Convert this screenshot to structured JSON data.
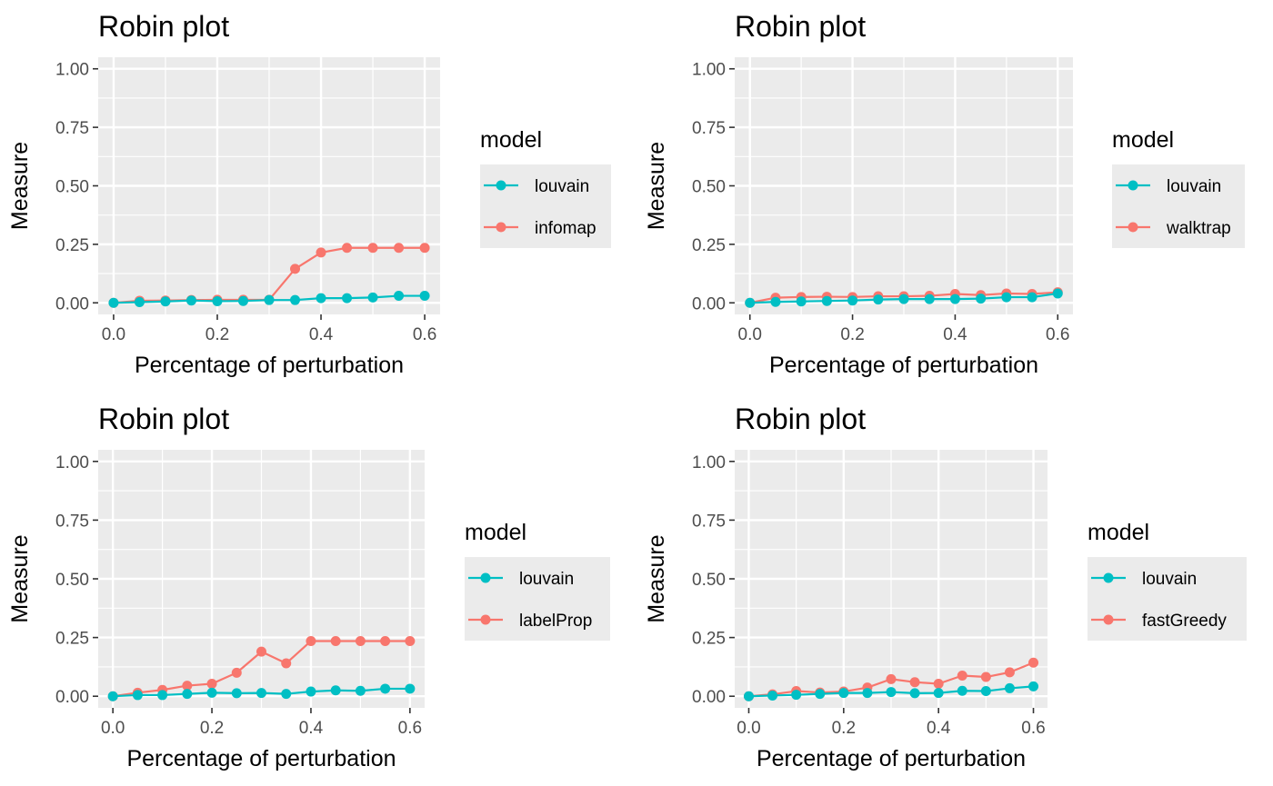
{
  "chart_data": [
    {
      "type": "line",
      "title": "Robin plot",
      "xlabel": "Percentage of perturbation",
      "ylabel": "Measure",
      "legend_title": "model",
      "legend_position": "right",
      "grid": true,
      "xlim": [
        0,
        0.6
      ],
      "ylim": [
        0,
        1
      ],
      "x": [
        0,
        0.05,
        0.1,
        0.15,
        0.2,
        0.25,
        0.3,
        0.35,
        0.4,
        0.45,
        0.5,
        0.55,
        0.6
      ],
      "xticks": [
        "0.0",
        "0.2",
        "0.4",
        "0.6"
      ],
      "yticks": [
        "0.00",
        "0.25",
        "0.50",
        "0.75",
        "1.00"
      ],
      "series": [
        {
          "name": "louvain",
          "color": "#00BFC4",
          "values": [
            0,
            0.003,
            0.006,
            0.01,
            0.007,
            0.008,
            0.012,
            0.012,
            0.02,
            0.02,
            0.023,
            0.03,
            0.03
          ]
        },
        {
          "name": "infomap",
          "color": "#F8766D",
          "values": [
            0,
            0.009,
            0.01,
            0.012,
            0.013,
            0.013,
            0.013,
            0.145,
            0.215,
            0.235,
            0.235,
            0.235,
            0.235
          ]
        }
      ]
    },
    {
      "type": "line",
      "title": "Robin plot",
      "xlabel": "Percentage of perturbation",
      "ylabel": "Measure",
      "legend_title": "model",
      "legend_position": "right",
      "grid": true,
      "xlim": [
        0,
        0.6
      ],
      "ylim": [
        0,
        1
      ],
      "x": [
        0,
        0.05,
        0.1,
        0.15,
        0.2,
        0.25,
        0.3,
        0.35,
        0.4,
        0.45,
        0.5,
        0.55,
        0.6
      ],
      "xticks": [
        "0.0",
        "0.2",
        "0.4",
        "0.6"
      ],
      "yticks": [
        "0.00",
        "0.25",
        "0.50",
        "0.75",
        "1.00"
      ],
      "series": [
        {
          "name": "louvain",
          "color": "#00BFC4",
          "values": [
            0,
            0.004,
            0.006,
            0.008,
            0.01,
            0.014,
            0.016,
            0.016,
            0.016,
            0.018,
            0.024,
            0.024,
            0.04
          ]
        },
        {
          "name": "walktrap",
          "color": "#F8766D",
          "values": [
            0,
            0.022,
            0.025,
            0.026,
            0.025,
            0.028,
            0.028,
            0.03,
            0.038,
            0.033,
            0.04,
            0.038,
            0.045
          ]
        }
      ]
    },
    {
      "type": "line",
      "title": "Robin plot",
      "xlabel": "Percentage of perturbation",
      "ylabel": "Measure",
      "legend_title": "model",
      "legend_position": "right",
      "grid": true,
      "xlim": [
        0,
        0.6
      ],
      "ylim": [
        0,
        1
      ],
      "x": [
        0,
        0.05,
        0.1,
        0.15,
        0.2,
        0.25,
        0.3,
        0.35,
        0.4,
        0.45,
        0.5,
        0.55,
        0.6
      ],
      "xticks": [
        "0.0",
        "0.2",
        "0.4",
        "0.6"
      ],
      "yticks": [
        "0.00",
        "0.25",
        "0.50",
        "0.75",
        "1.00"
      ],
      "series": [
        {
          "name": "louvain",
          "color": "#00BFC4",
          "values": [
            0,
            0.005,
            0.005,
            0.01,
            0.015,
            0.013,
            0.014,
            0.01,
            0.02,
            0.025,
            0.023,
            0.032,
            0.032
          ]
        },
        {
          "name": "labelProp",
          "color": "#F8766D",
          "values": [
            0,
            0.015,
            0.027,
            0.045,
            0.053,
            0.1,
            0.19,
            0.14,
            0.235,
            0.235,
            0.235,
            0.235,
            0.235
          ]
        }
      ]
    },
    {
      "type": "line",
      "title": "Robin plot",
      "xlabel": "Percentage of perturbation",
      "ylabel": "Measure",
      "legend_title": "model",
      "legend_position": "right",
      "grid": true,
      "xlim": [
        0,
        0.6
      ],
      "ylim": [
        0,
        1
      ],
      "x": [
        0,
        0.05,
        0.1,
        0.15,
        0.2,
        0.25,
        0.3,
        0.35,
        0.4,
        0.45,
        0.5,
        0.55,
        0.6
      ],
      "xticks": [
        "0.0",
        "0.2",
        "0.4",
        "0.6"
      ],
      "yticks": [
        "0.00",
        "0.25",
        "0.50",
        "0.75",
        "1.00"
      ],
      "series": [
        {
          "name": "louvain",
          "color": "#00BFC4",
          "values": [
            0,
            0.003,
            0.006,
            0.01,
            0.014,
            0.014,
            0.018,
            0.013,
            0.014,
            0.023,
            0.022,
            0.034,
            0.042
          ]
        },
        {
          "name": "fastGreedy",
          "color": "#F8766D",
          "values": [
            0,
            0.008,
            0.022,
            0.016,
            0.02,
            0.037,
            0.073,
            0.06,
            0.053,
            0.088,
            0.082,
            0.102,
            0.143
          ]
        }
      ]
    }
  ]
}
